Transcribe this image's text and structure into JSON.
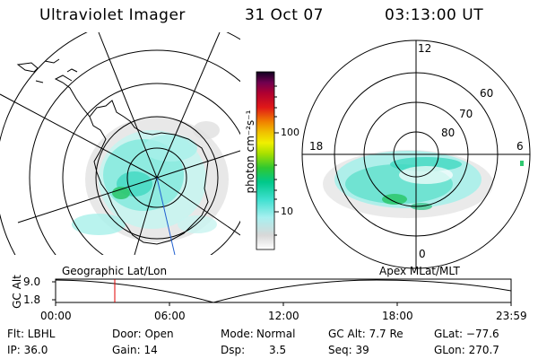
{
  "header": {
    "instrument": "Ultraviolet Imager",
    "date": "31 Oct 07",
    "time": "03:13:00 UT"
  },
  "colorbar": {
    "unit_label": "photon cm⁻²s⁻¹",
    "ticks": [
      "100",
      "10"
    ],
    "scale": "log",
    "colors": [
      "#ffffff",
      "#e0e0e0",
      "#a0f0f0",
      "#40e0d0",
      "#00c090",
      "#40d040",
      "#a0e000",
      "#e8f000",
      "#f0c000",
      "#f08000",
      "#e02000",
      "#b00020",
      "#800040",
      "#400060",
      "#000020"
    ]
  },
  "left_map": {
    "projection_label": "Geographic Lat/Lon"
  },
  "right_map": {
    "projection_label": "Apex  MLat/MLT",
    "mlt_labels": {
      "top": "12",
      "left": "18",
      "right": "6",
      "bottom": "0"
    },
    "lat_labels": [
      "60",
      "70",
      "80"
    ]
  },
  "timeline": {
    "y_axis_label": "GC Alt",
    "y_ticks": [
      "9.0",
      "1.8"
    ],
    "x_ticks": [
      "00:00",
      "06:00",
      "12:00",
      "18:00",
      "23:59"
    ],
    "cursor_time": "03:13"
  },
  "info": {
    "flt": "Flt: LBHL",
    "ip": "IP: 36.0",
    "door": "Door: Open",
    "gain": "Gain: 14",
    "mode_label": "Mode:",
    "mode_value": "Normal",
    "dsp_label": "Dsp:",
    "dsp_value": "3.5",
    "gcalt": "GC Alt: 7.7 Re",
    "seq": "Seq: 39",
    "glat": "GLat: −77.6",
    "glon": "GLon: 270.7"
  }
}
